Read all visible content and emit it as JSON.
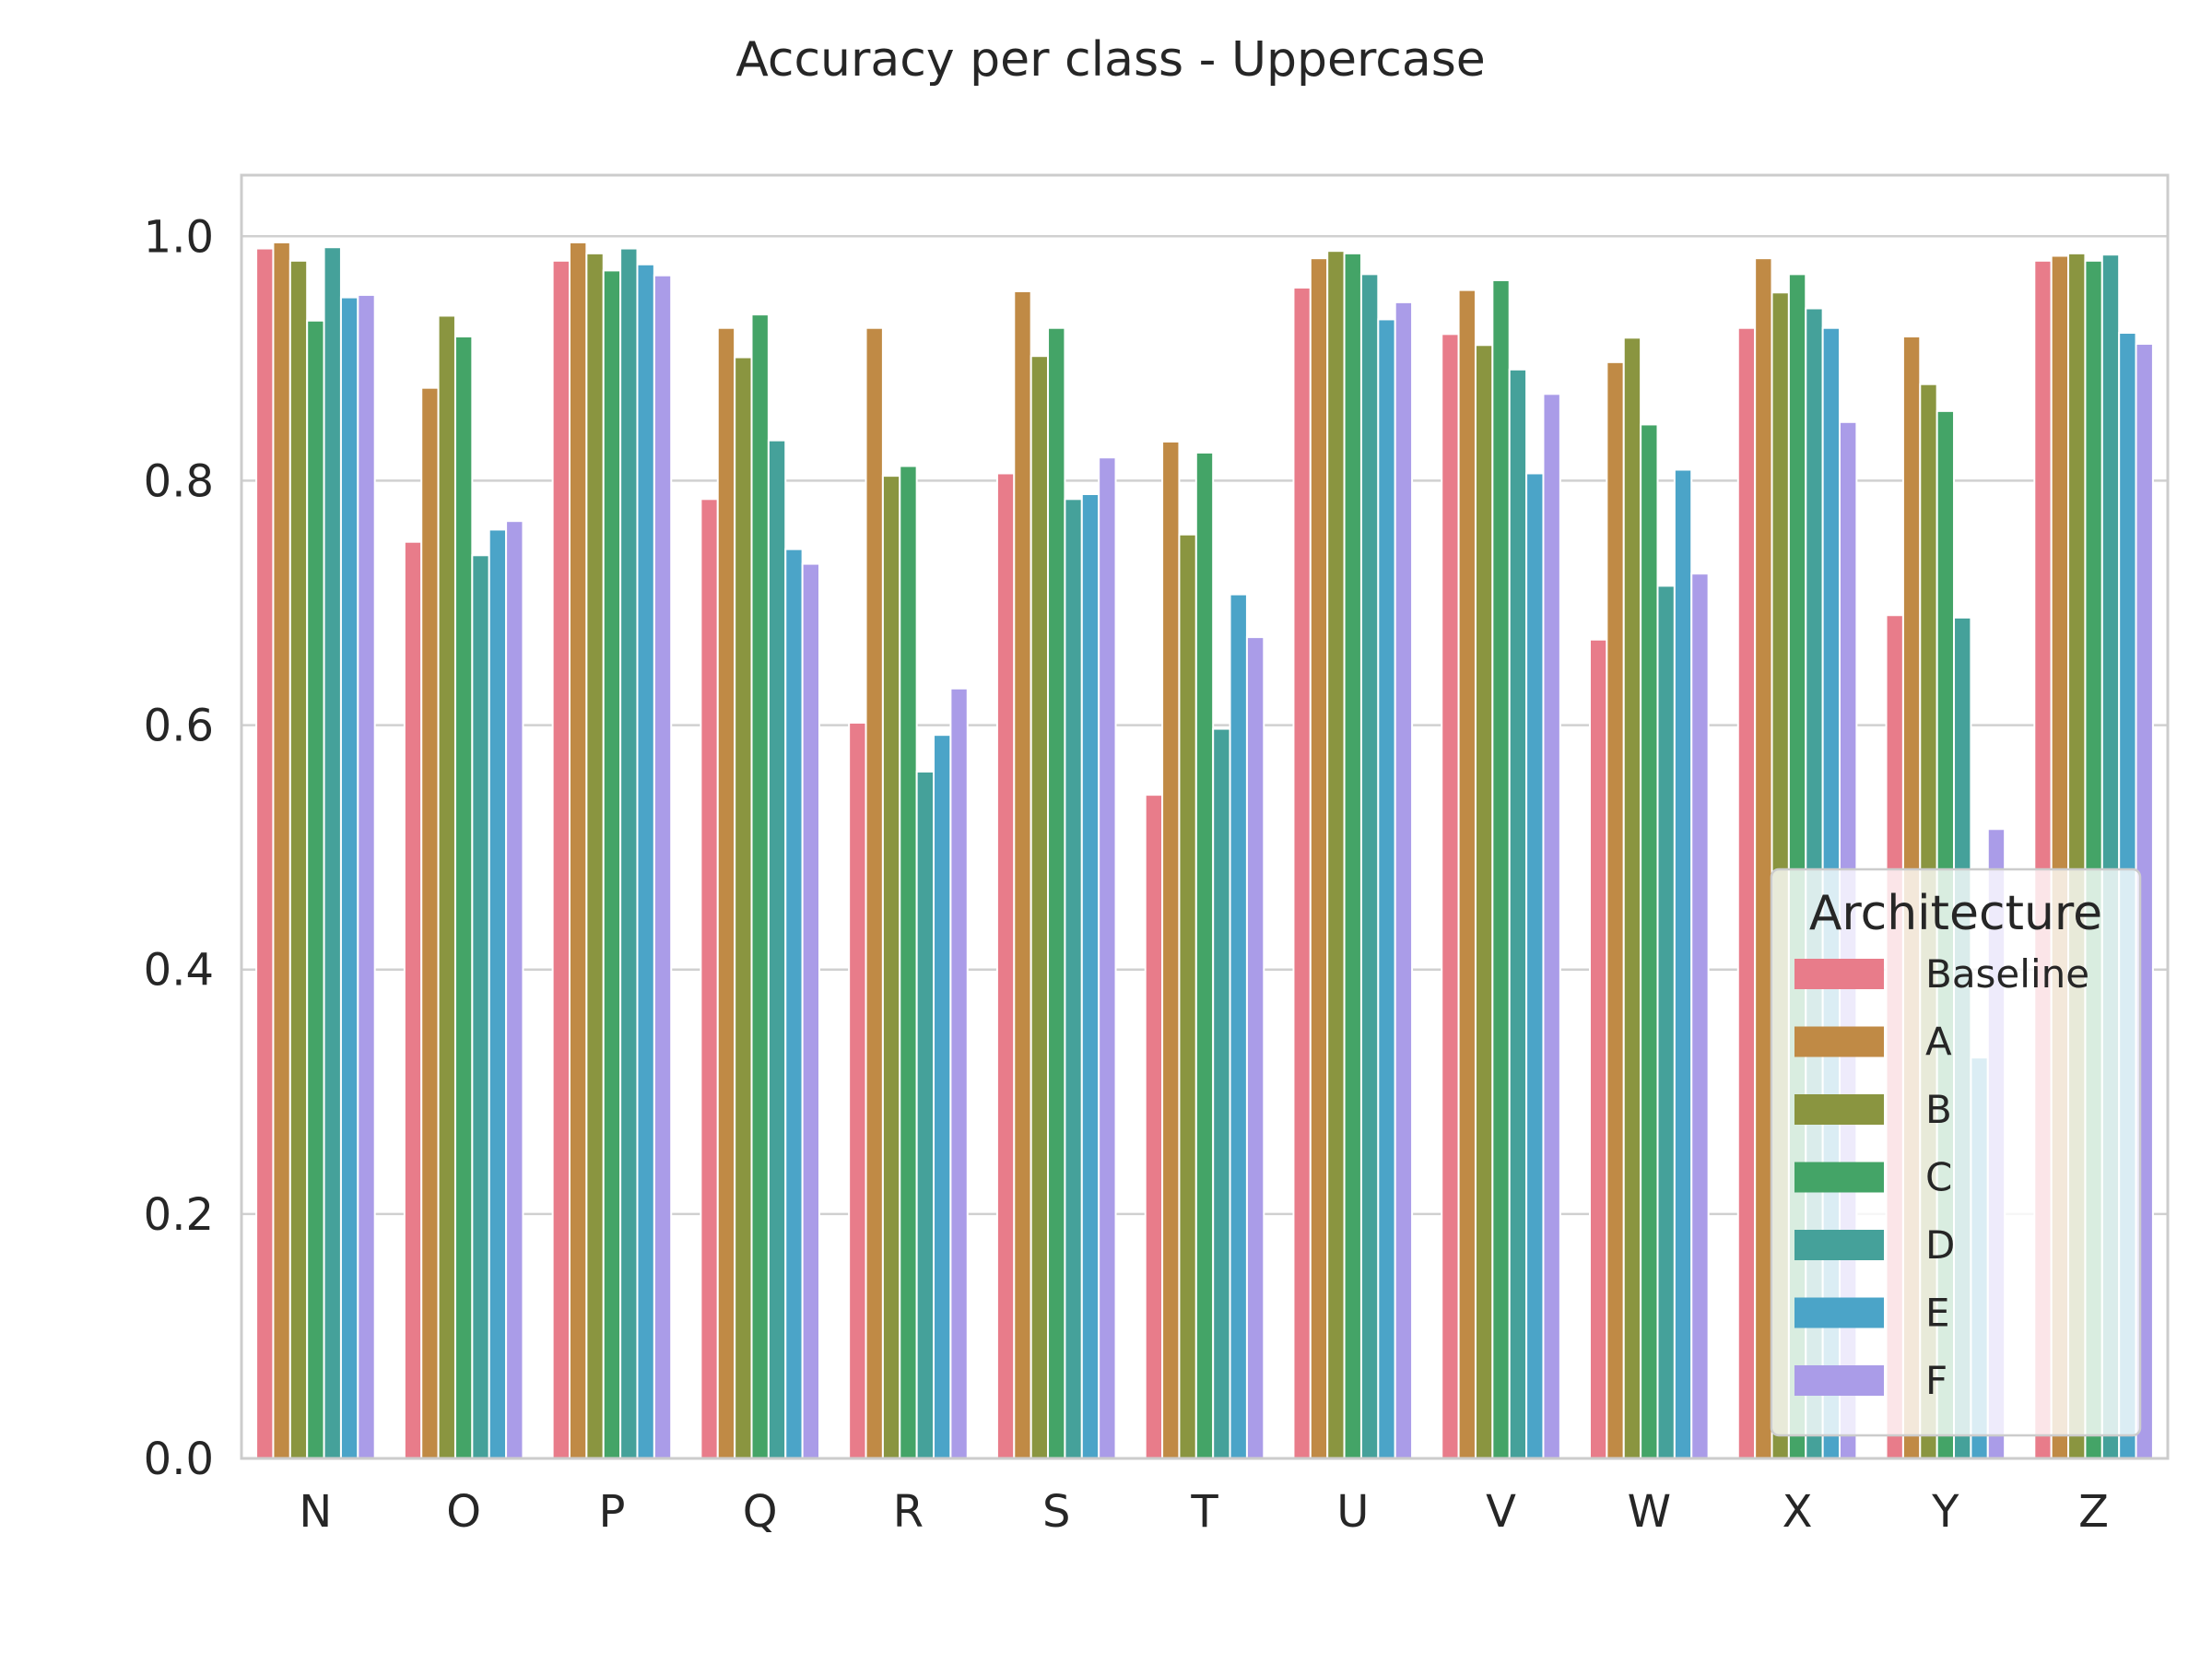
{
  "chart_data": {
    "type": "bar",
    "title": "Accuracy per class - Uppercase",
    "xlabel": "",
    "ylabel": "",
    "ylim": [
      0,
      1.05
    ],
    "yticks": [
      "0.0",
      "0.2",
      "0.4",
      "0.6",
      "0.8",
      "1.0"
    ],
    "grid": "y",
    "categories": [
      "N",
      "O",
      "P",
      "Q",
      "R",
      "S",
      "T",
      "U",
      "V",
      "W",
      "X",
      "Y",
      "Z"
    ],
    "legend": {
      "title": "Architecture",
      "placement": "lower right"
    },
    "series": [
      {
        "name": "Baseline",
        "color": "#e87c8a",
        "values": [
          0.99,
          0.75,
          0.98,
          0.785,
          0.602,
          0.806,
          0.543,
          0.958,
          0.92,
          0.67,
          0.925,
          0.69,
          0.98
        ]
      },
      {
        "name": "A",
        "color": "#c08a45",
        "values": [
          0.995,
          0.876,
          0.995,
          0.925,
          0.925,
          0.955,
          0.832,
          0.982,
          0.956,
          0.897,
          0.982,
          0.918,
          0.984
        ]
      },
      {
        "name": "B",
        "color": "#8a9540",
        "values": [
          0.98,
          0.935,
          0.986,
          0.901,
          0.804,
          0.902,
          0.756,
          0.988,
          0.911,
          0.917,
          0.954,
          0.879,
          0.986
        ]
      },
      {
        "name": "C",
        "color": "#44a467",
        "values": [
          0.931,
          0.918,
          0.972,
          0.936,
          0.812,
          0.925,
          0.823,
          0.986,
          0.964,
          0.846,
          0.969,
          0.857,
          0.98
        ]
      },
      {
        "name": "D",
        "color": "#45a19a",
        "values": [
          0.991,
          0.739,
          0.99,
          0.833,
          0.562,
          0.785,
          0.597,
          0.969,
          0.891,
          0.714,
          0.941,
          0.688,
          0.985
        ]
      },
      {
        "name": "E",
        "color": "#4ba4c8",
        "values": [
          0.95,
          0.76,
          0.977,
          0.744,
          0.592,
          0.789,
          0.707,
          0.932,
          0.806,
          0.809,
          0.925,
          0.328,
          0.921
        ]
      },
      {
        "name": "F",
        "color": "#aa9ce8",
        "values": [
          0.952,
          0.767,
          0.968,
          0.732,
          0.63,
          0.819,
          0.672,
          0.946,
          0.871,
          0.724,
          0.848,
          0.515,
          0.912
        ]
      }
    ]
  }
}
